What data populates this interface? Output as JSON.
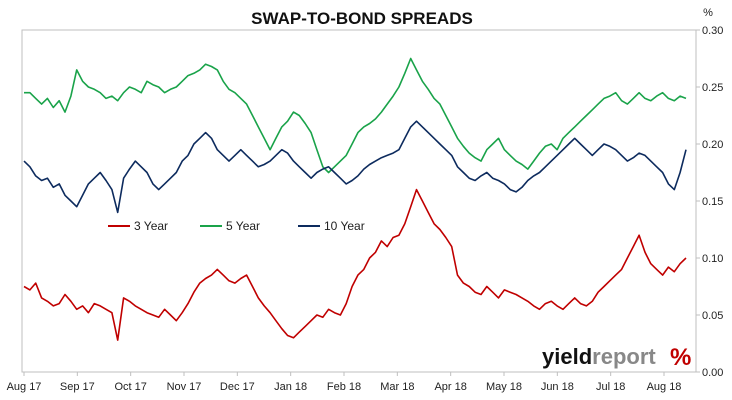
{
  "chart_data": {
    "type": "line",
    "title": "SWAP-TO-BOND SPREADS",
    "unit_label": "%",
    "ylim": [
      0,
      0.3
    ],
    "y_ticks": [
      "0.00",
      "0.05",
      "0.10",
      "0.15",
      "0.20",
      "0.25",
      "0.30"
    ],
    "y_axis_side": "right",
    "grid": false,
    "legend_placement": "inside-middle-left",
    "x_ticks": [
      "Aug 17",
      "Sep 17",
      "Oct 17",
      "Nov 17",
      "Dec 17",
      "Jan 18",
      "Feb 18",
      "Mar 18",
      "Apr 18",
      "May 18",
      "Jun 18",
      "Jul 18",
      "Aug 18"
    ],
    "series": [
      {
        "name": "3 Year",
        "color": "#c00000",
        "values": [
          0.075,
          0.072,
          0.078,
          0.065,
          0.062,
          0.058,
          0.06,
          0.068,
          0.062,
          0.055,
          0.058,
          0.052,
          0.06,
          0.058,
          0.055,
          0.052,
          0.028,
          0.065,
          0.062,
          0.058,
          0.055,
          0.052,
          0.05,
          0.048,
          0.055,
          0.05,
          0.045,
          0.052,
          0.06,
          0.07,
          0.078,
          0.082,
          0.085,
          0.09,
          0.085,
          0.08,
          0.078,
          0.082,
          0.085,
          0.075,
          0.065,
          0.058,
          0.052,
          0.045,
          0.038,
          0.032,
          0.03,
          0.035,
          0.04,
          0.045,
          0.05,
          0.048,
          0.055,
          0.052,
          0.05,
          0.06,
          0.075,
          0.085,
          0.09,
          0.1,
          0.105,
          0.115,
          0.11,
          0.118,
          0.12,
          0.13,
          0.145,
          0.16,
          0.15,
          0.14,
          0.13,
          0.125,
          0.118,
          0.11,
          0.085,
          0.078,
          0.075,
          0.07,
          0.068,
          0.075,
          0.07,
          0.065,
          0.072,
          0.07,
          0.068,
          0.065,
          0.062,
          0.058,
          0.055,
          0.06,
          0.062,
          0.058,
          0.055,
          0.06,
          0.065,
          0.06,
          0.058,
          0.062,
          0.07,
          0.075,
          0.08,
          0.085,
          0.09,
          0.1,
          0.11,
          0.12,
          0.105,
          0.095,
          0.09,
          0.085,
          0.092,
          0.088,
          0.095,
          0.1
        ]
      },
      {
        "name": "5 Year",
        "color": "#1aa34a",
        "values": [
          0.245,
          0.245,
          0.24,
          0.235,
          0.24,
          0.232,
          0.238,
          0.228,
          0.242,
          0.265,
          0.255,
          0.25,
          0.248,
          0.245,
          0.24,
          0.242,
          0.238,
          0.245,
          0.25,
          0.248,
          0.245,
          0.255,
          0.252,
          0.25,
          0.245,
          0.248,
          0.25,
          0.255,
          0.26,
          0.262,
          0.265,
          0.27,
          0.268,
          0.265,
          0.255,
          0.248,
          0.245,
          0.24,
          0.235,
          0.225,
          0.215,
          0.205,
          0.195,
          0.205,
          0.215,
          0.22,
          0.228,
          0.225,
          0.218,
          0.21,
          0.195,
          0.18,
          0.175,
          0.18,
          0.185,
          0.19,
          0.2,
          0.21,
          0.215,
          0.218,
          0.222,
          0.228,
          0.235,
          0.242,
          0.25,
          0.262,
          0.275,
          0.265,
          0.255,
          0.248,
          0.24,
          0.235,
          0.225,
          0.215,
          0.205,
          0.198,
          0.192,
          0.188,
          0.185,
          0.195,
          0.2,
          0.205,
          0.195,
          0.19,
          0.185,
          0.182,
          0.178,
          0.185,
          0.192,
          0.198,
          0.2,
          0.195,
          0.205,
          0.21,
          0.215,
          0.22,
          0.225,
          0.23,
          0.235,
          0.24,
          0.242,
          0.245,
          0.238,
          0.235,
          0.24,
          0.245,
          0.24,
          0.238,
          0.242,
          0.245,
          0.24,
          0.238,
          0.242,
          0.24
        ]
      },
      {
        "name": "10 Year",
        "color": "#0d2b5e",
        "values": [
          0.185,
          0.18,
          0.172,
          0.168,
          0.17,
          0.162,
          0.165,
          0.155,
          0.15,
          0.145,
          0.155,
          0.165,
          0.17,
          0.175,
          0.168,
          0.16,
          0.14,
          0.17,
          0.178,
          0.185,
          0.18,
          0.175,
          0.165,
          0.16,
          0.165,
          0.17,
          0.175,
          0.185,
          0.19,
          0.2,
          0.205,
          0.21,
          0.205,
          0.195,
          0.19,
          0.185,
          0.19,
          0.195,
          0.19,
          0.185,
          0.18,
          0.182,
          0.185,
          0.19,
          0.195,
          0.192,
          0.185,
          0.18,
          0.175,
          0.17,
          0.175,
          0.178,
          0.18,
          0.175,
          0.17,
          0.165,
          0.168,
          0.172,
          0.178,
          0.182,
          0.185,
          0.188,
          0.19,
          0.192,
          0.195,
          0.205,
          0.215,
          0.22,
          0.215,
          0.21,
          0.205,
          0.2,
          0.195,
          0.19,
          0.18,
          0.175,
          0.17,
          0.168,
          0.172,
          0.175,
          0.17,
          0.168,
          0.165,
          0.16,
          0.158,
          0.162,
          0.168,
          0.172,
          0.175,
          0.18,
          0.185,
          0.19,
          0.195,
          0.2,
          0.205,
          0.2,
          0.195,
          0.19,
          0.195,
          0.2,
          0.198,
          0.195,
          0.19,
          0.185,
          0.188,
          0.192,
          0.19,
          0.185,
          0.18,
          0.175,
          0.165,
          0.16,
          0.175,
          0.195
        ]
      }
    ]
  },
  "branding": {
    "part1": "yield",
    "part2": "report",
    "symbol": "%",
    "colors": {
      "dark": "#111111",
      "grey": "#888888",
      "symbol_red": "#c00000",
      "symbol_green": "#1aa34a"
    }
  }
}
